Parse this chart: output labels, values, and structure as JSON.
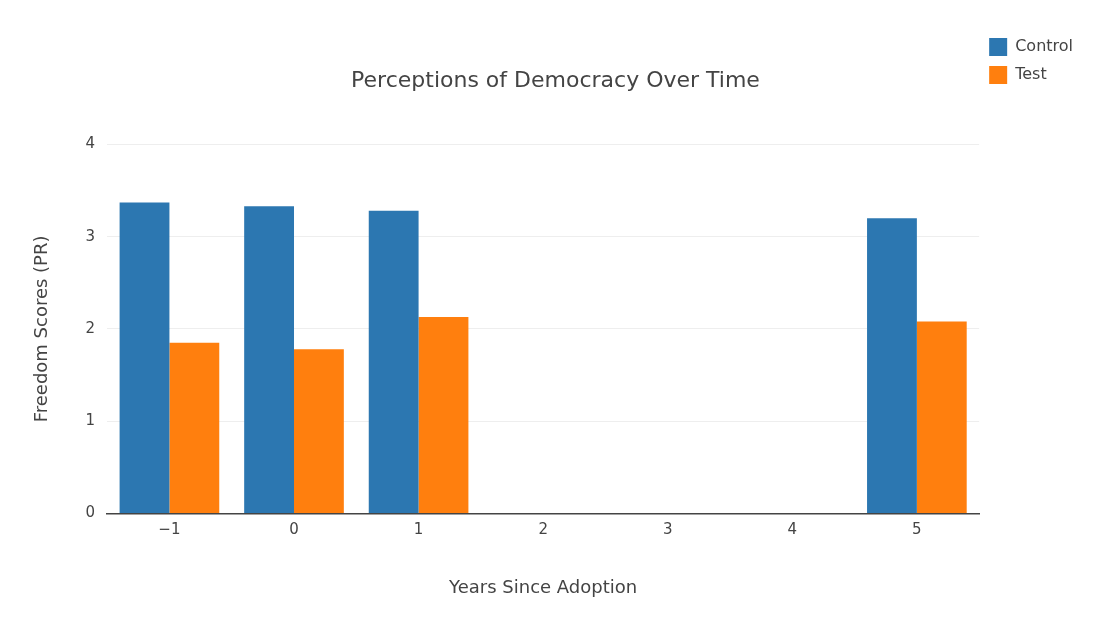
{
  "chart_data": {
    "type": "bar",
    "title": "Perceptions of Democracy Over Time",
    "xlabel": "Years Since Adoption",
    "ylabel": "Freedom Scores (PR)",
    "categories": [
      "−1",
      "0",
      "1",
      "2",
      "3",
      "4",
      "5"
    ],
    "series": [
      {
        "name": "Control",
        "color": "#2c77b1",
        "values": [
          3.37,
          3.33,
          3.28,
          null,
          null,
          null,
          3.2
        ]
      },
      {
        "name": "Test",
        "color": "#ff7f0e",
        "values": [
          1.85,
          1.78,
          2.13,
          null,
          null,
          null,
          2.08
        ]
      }
    ],
    "ylim": [
      0,
      4
    ],
    "yticks": [
      0,
      1,
      2,
      3,
      4
    ],
    "grid": "y",
    "legend": "top right"
  }
}
